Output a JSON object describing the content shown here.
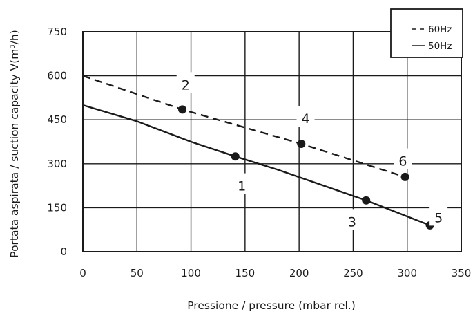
{
  "chart_data": {
    "type": "line",
    "xlabel": "Pressione / pressure (mbar rel.)",
    "ylabel": "Portata aspirata / suction capacity V(m³/h)",
    "xlim": [
      0,
      350
    ],
    "ylim": [
      0,
      750
    ],
    "x_ticks": [
      "0",
      "50",
      "100",
      "150",
      "200",
      "250",
      "300",
      "350"
    ],
    "y_ticks": [
      "0",
      "150",
      "300",
      "450",
      "600",
      "750"
    ],
    "grid": true,
    "legend_position": "top-right",
    "series": [
      {
        "name": "60Hz",
        "style": "dashed",
        "color": "#1a1a1a",
        "x": [
          0,
          92,
          202,
          298
        ],
        "y": [
          600,
          485,
          368,
          255
        ]
      },
      {
        "name": "50Hz",
        "style": "solid",
        "color": "#1a1a1a",
        "x": [
          0,
          50,
          100,
          141,
          180,
          262,
          321
        ],
        "y": [
          500,
          445,
          375,
          325,
          280,
          175,
          90
        ]
      }
    ],
    "markers": [
      {
        "x": 92,
        "y": 485
      },
      {
        "x": 141,
        "y": 325
      },
      {
        "x": 202,
        "y": 368
      },
      {
        "x": 262,
        "y": 175
      },
      {
        "x": 298,
        "y": 255
      },
      {
        "x": 321,
        "y": 90
      }
    ],
    "annotations": [
      {
        "text": "1",
        "x": 147,
        "y": 225
      },
      {
        "text": "2",
        "x": 95,
        "y": 570
      },
      {
        "text": "3",
        "x": 249,
        "y": 103
      },
      {
        "text": "4",
        "x": 206,
        "y": 455
      },
      {
        "text": "5",
        "x": 329,
        "y": 117
      },
      {
        "text": "6",
        "x": 296,
        "y": 310
      }
    ]
  }
}
